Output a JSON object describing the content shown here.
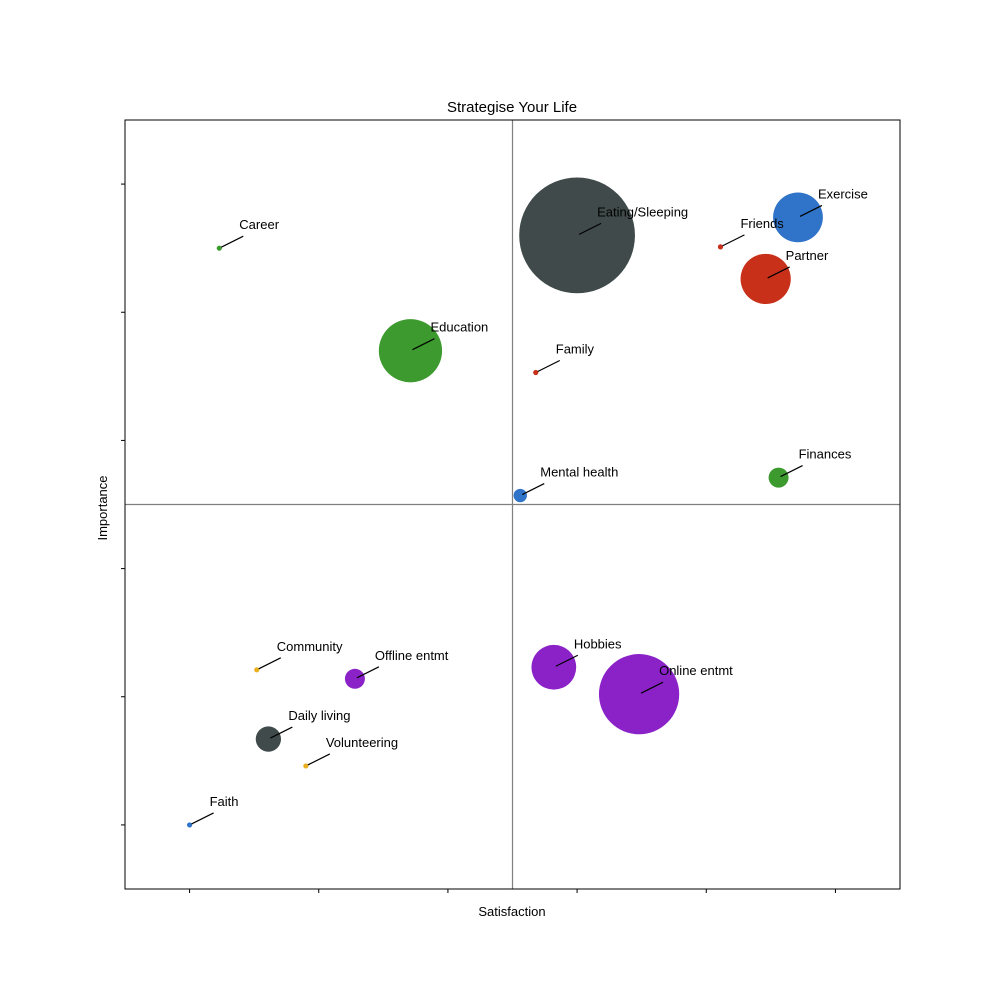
{
  "chart_data": {
    "type": "scatter",
    "title": "Strategise Your Life",
    "xlabel": "Satisfaction",
    "ylabel": "Importance",
    "xlim": [
      -0.5,
      5.5
    ],
    "ylim": [
      -0.5,
      5.5
    ],
    "x_ticks": [
      0,
      1,
      2,
      3,
      4,
      5
    ],
    "y_ticks": [
      0,
      1,
      2,
      3,
      4,
      5
    ],
    "tick_labels_shown": false,
    "reference_lines": {
      "x": 2.5,
      "y": 2.5
    },
    "grid": false,
    "legend": "none",
    "points": [
      {
        "label": "Career",
        "x": 0.23,
        "y": 4.5,
        "size": 6,
        "color": "#3d9a2f"
      },
      {
        "label": "Education",
        "x": 1.71,
        "y": 3.7,
        "size": 1000,
        "color": "#3d9a2f"
      },
      {
        "label": "Eating/Sleeping",
        "x": 3.0,
        "y": 4.6,
        "size": 3350,
        "color": "#404a4a"
      },
      {
        "label": "Exercise",
        "x": 4.71,
        "y": 4.74,
        "size": 620,
        "color": "#2f74c8"
      },
      {
        "label": "Friends",
        "x": 4.11,
        "y": 4.51,
        "size": 6,
        "color": "#c8301a"
      },
      {
        "label": "Partner",
        "x": 4.46,
        "y": 4.26,
        "size": 630,
        "color": "#c8301a"
      },
      {
        "label": "Family",
        "x": 2.68,
        "y": 3.53,
        "size": 6,
        "color": "#c8301a"
      },
      {
        "label": "Mental health",
        "x": 2.56,
        "y": 2.57,
        "size": 45,
        "color": "#2f74c8"
      },
      {
        "label": "Finances",
        "x": 4.56,
        "y": 2.71,
        "size": 100,
        "color": "#3d9a2f"
      },
      {
        "label": "Community",
        "x": 0.52,
        "y": 1.21,
        "size": 6,
        "color": "#eab020"
      },
      {
        "label": "Offline entmt",
        "x": 1.28,
        "y": 1.14,
        "size": 100,
        "color": "#8a22c8"
      },
      {
        "label": "Daily living",
        "x": 0.61,
        "y": 0.67,
        "size": 160,
        "color": "#404a4a"
      },
      {
        "label": "Volunteering",
        "x": 0.9,
        "y": 0.46,
        "size": 6,
        "color": "#eab020"
      },
      {
        "label": "Faith",
        "x": 0.0,
        "y": 0.0,
        "size": 6,
        "color": "#2f74c8"
      },
      {
        "label": "Hobbies",
        "x": 2.82,
        "y": 1.23,
        "size": 500,
        "color": "#8a22c8"
      },
      {
        "label": "Online entmt",
        "x": 3.48,
        "y": 1.02,
        "size": 1610,
        "color": "#8a22c8"
      }
    ]
  }
}
